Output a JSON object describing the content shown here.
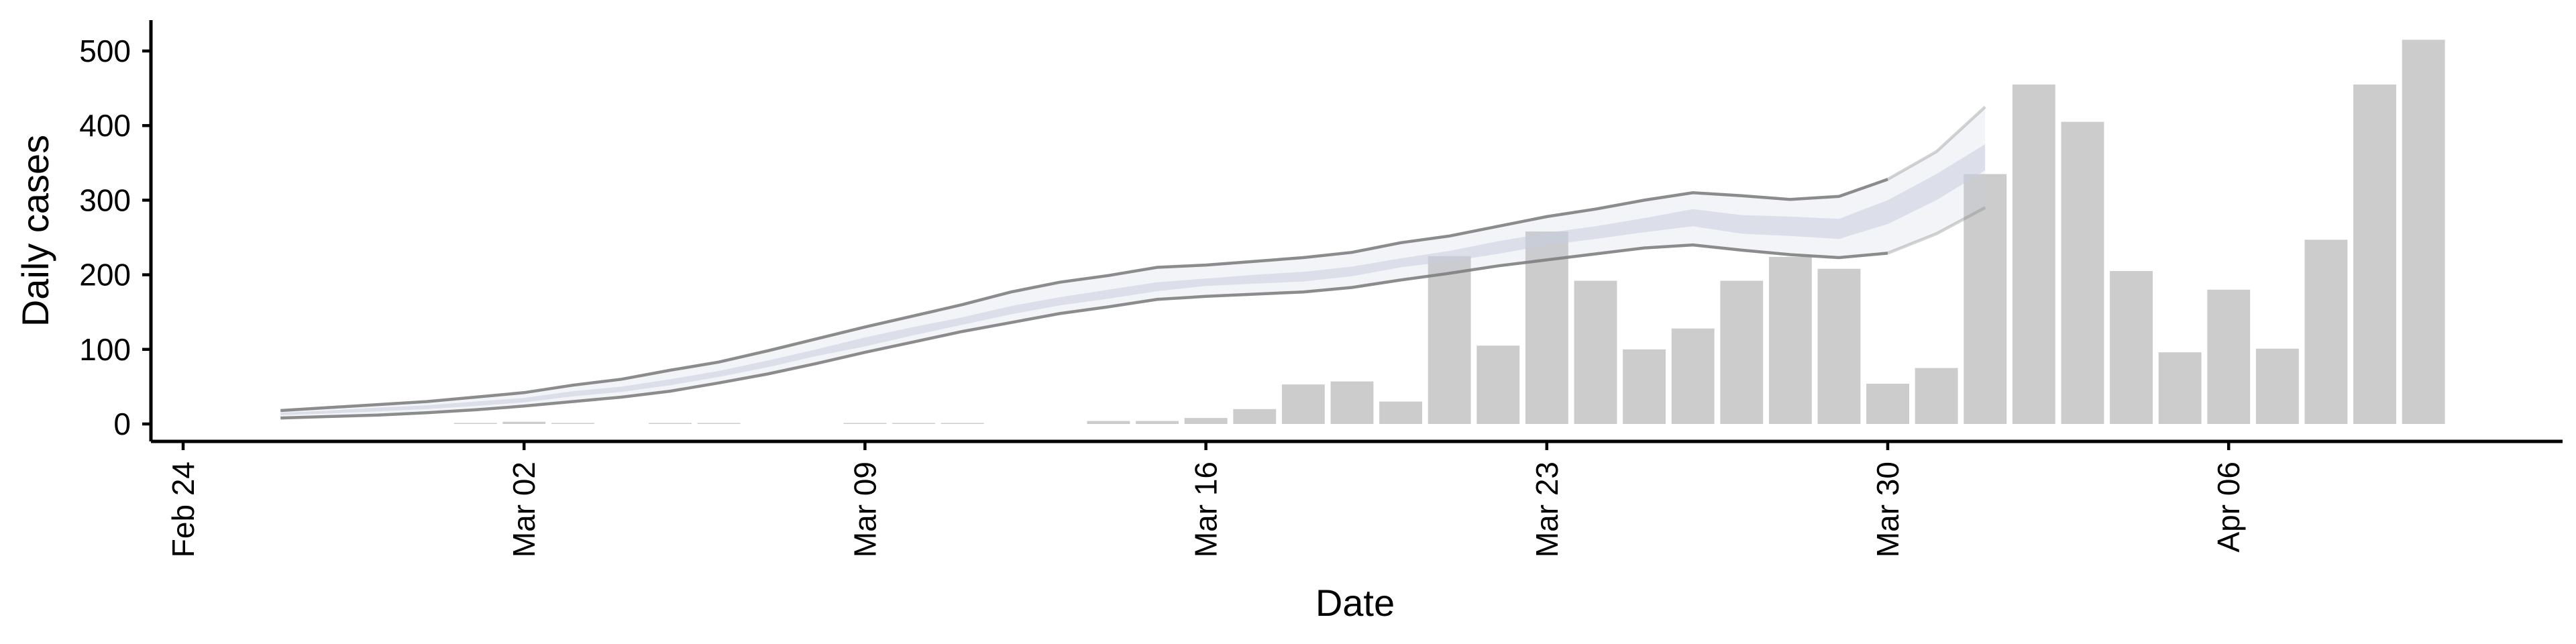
{
  "chart_data": {
    "type": "bar",
    "xlabel": "Date",
    "ylabel": "Daily cases",
    "ylim": [
      -25,
      540
    ],
    "xlim": [
      "2020-02-24",
      "2020-04-12"
    ],
    "x_ticks": [
      {
        "date": "2020-02-24",
        "label": "Feb 24"
      },
      {
        "date": "2020-03-02",
        "label": "Mar 02"
      },
      {
        "date": "2020-03-09",
        "label": "Mar 09"
      },
      {
        "date": "2020-03-16",
        "label": "Mar 16"
      },
      {
        "date": "2020-03-23",
        "label": "Mar 23"
      },
      {
        "date": "2020-03-30",
        "label": "Mar 30"
      },
      {
        "date": "2020-04-06",
        "label": "Apr 06"
      }
    ],
    "y_ticks": [
      0,
      100,
      200,
      300,
      400,
      500
    ],
    "grid": false,
    "bar_color": "#cccccc",
    "band_color": "#c9cedf",
    "bound_line_color": "#808080",
    "series": [
      {
        "type": "bar",
        "x": [
          "2020-03-01",
          "2020-03-02",
          "2020-03-03",
          "2020-03-05",
          "2020-03-06",
          "2020-03-09",
          "2020-03-10",
          "2020-03-11",
          "2020-03-14",
          "2020-03-15",
          "2020-03-16",
          "2020-03-17",
          "2020-03-18",
          "2020-03-19",
          "2020-03-20",
          "2020-03-21",
          "2020-03-22",
          "2020-03-23",
          "2020-03-24",
          "2020-03-25",
          "2020-03-26",
          "2020-03-27",
          "2020-03-28",
          "2020-03-29",
          "2020-03-30",
          "2020-03-31",
          "2020-04-01",
          "2020-04-02",
          "2020-04-03",
          "2020-04-04",
          "2020-04-05",
          "2020-04-06",
          "2020-04-07",
          "2020-04-08",
          "2020-04-09",
          "2020-04-10"
        ],
        "values": [
          1,
          3,
          1,
          1,
          1,
          1,
          1,
          1,
          4,
          4,
          8,
          20,
          53,
          57,
          30,
          225,
          105,
          258,
          192,
          100,
          128,
          192,
          224,
          208,
          54,
          75,
          335,
          455,
          405,
          205,
          96,
          180,
          101,
          247,
          455,
          515
        ]
      },
      {
        "type": "area",
        "x": [
          "2020-02-26",
          "2020-02-27",
          "2020-02-28",
          "2020-02-29",
          "2020-03-01",
          "2020-03-02",
          "2020-03-03",
          "2020-03-04",
          "2020-03-05",
          "2020-03-06",
          "2020-03-07",
          "2020-03-08",
          "2020-03-09",
          "2020-03-10",
          "2020-03-11",
          "2020-03-12",
          "2020-03-13",
          "2020-03-14",
          "2020-03-15",
          "2020-03-16",
          "2020-03-17",
          "2020-03-18",
          "2020-03-19",
          "2020-03-20",
          "2020-03-21",
          "2020-03-22",
          "2020-03-23",
          "2020-03-24",
          "2020-03-25",
          "2020-03-26",
          "2020-03-27",
          "2020-03-28",
          "2020-03-29",
          "2020-03-30",
          "2020-03-31",
          "2020-04-01"
        ],
        "upper": [
          18,
          22,
          26,
          30,
          36,
          42,
          52,
          60,
          72,
          83,
          98,
          114,
          130,
          145,
          160,
          177,
          190,
          199,
          210,
          213,
          218,
          223,
          230,
          243,
          252,
          265,
          278,
          288,
          300,
          310,
          306,
          301,
          305,
          328,
          365,
          425
        ],
        "lower": [
          8,
          10,
          12,
          15,
          19,
          24,
          30,
          36,
          44,
          55,
          67,
          81,
          96,
          110,
          124,
          136,
          148,
          157,
          167,
          171,
          174,
          177,
          183,
          193,
          202,
          212,
          220,
          228,
          236,
          240,
          233,
          227,
          223,
          229,
          255,
          290
        ],
        "inner_upper": [
          15,
          18,
          22,
          25,
          30,
          35,
          44,
          50,
          60,
          71,
          85,
          100,
          116,
          130,
          143,
          158,
          170,
          180,
          190,
          195,
          200,
          204,
          211,
          222,
          232,
          245,
          256,
          265,
          276,
          288,
          280,
          278,
          275,
          300,
          335,
          375
        ],
        "inner_lower": [
          12,
          14,
          17,
          20,
          24,
          29,
          37,
          43,
          52,
          63,
          76,
          91,
          104,
          119,
          133,
          147,
          159,
          168,
          178,
          185,
          188,
          191,
          198,
          210,
          218,
          228,
          240,
          248,
          257,
          265,
          255,
          252,
          248,
          268,
          300,
          340
        ],
        "line_upper": [
          18,
          22,
          26,
          30,
          36,
          42,
          52,
          60,
          72,
          83,
          98,
          114,
          130,
          145,
          160,
          177,
          190,
          199,
          210,
          213,
          218,
          223,
          230,
          243,
          252,
          265,
          278,
          288,
          300,
          310,
          306,
          301,
          305,
          328,
          365,
          425
        ],
        "line_lower": [
          8,
          10,
          12,
          15,
          19,
          24,
          30,
          36,
          44,
          55,
          67,
          81,
          96,
          110,
          124,
          136,
          148,
          157,
          167,
          171,
          174,
          177,
          183,
          193,
          202,
          212,
          220,
          228,
          236,
          240,
          233,
          227,
          223,
          229,
          255,
          290
        ]
      }
    ]
  }
}
